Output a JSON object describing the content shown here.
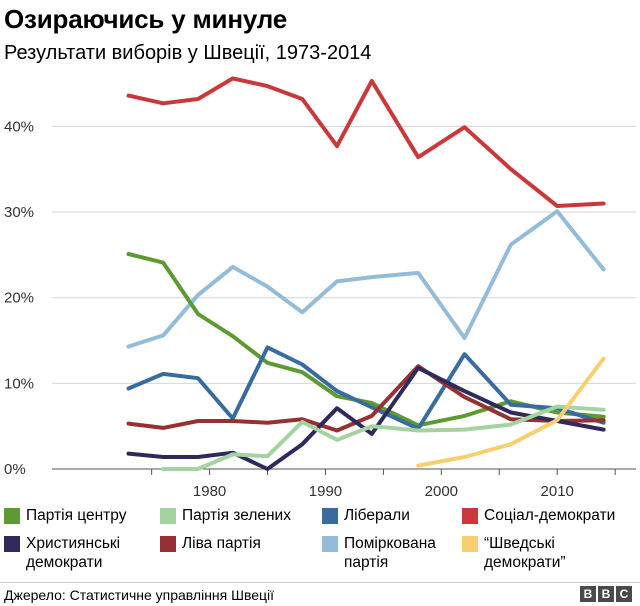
{
  "title": "Озираючись у минуле",
  "subtitle": "Результати виборів у Швеції, 1973-2014",
  "source": "Джерело: Статистичне управління Швеції",
  "brand": {
    "letters": [
      "B",
      "B",
      "C"
    ]
  },
  "chart_data": {
    "type": "line",
    "xlim": [
      1973,
      2014
    ],
    "ylim": [
      0,
      46
    ],
    "x_ticks": [
      1980,
      1990,
      2000,
      2010
    ],
    "x_tick_labels": [
      "1980",
      "1990",
      "2000",
      "2010"
    ],
    "y_ticks": [
      0,
      10,
      20,
      30,
      40
    ],
    "y_tick_labels": [
      "0%",
      "10%",
      "20%",
      "30%",
      "40%"
    ],
    "grid": true,
    "x": [
      1973,
      1976,
      1979,
      1982,
      1985,
      1988,
      1991,
      1994,
      1998,
      2002,
      2006,
      2010,
      2014
    ],
    "series": [
      {
        "name": "Соціал-демократи",
        "color": "#c9393a",
        "values": [
          43.6,
          42.7,
          43.2,
          45.6,
          44.7,
          43.2,
          37.7,
          45.3,
          36.4,
          39.9,
          35.0,
          30.7,
          31.0
        ]
      },
      {
        "name": "Поміркована партія",
        "color": "#93bcd9",
        "values": [
          14.3,
          15.6,
          20.3,
          23.6,
          21.3,
          18.3,
          21.9,
          22.4,
          22.9,
          15.3,
          26.2,
          30.1,
          23.3
        ]
      },
      {
        "name": "Партія центру",
        "color": "#5d9a32",
        "values": [
          25.1,
          24.1,
          18.1,
          15.5,
          12.4,
          11.3,
          8.5,
          7.7,
          5.1,
          6.2,
          7.9,
          6.6,
          6.1
        ]
      },
      {
        "name": "Ліберали",
        "color": "#386c9e",
        "values": [
          9.4,
          11.1,
          10.6,
          5.9,
          14.2,
          12.2,
          9.1,
          7.2,
          4.7,
          13.4,
          7.5,
          7.1,
          5.4
        ]
      },
      {
        "name": "Ліва партія",
        "color": "#953133",
        "values": [
          5.3,
          4.8,
          5.6,
          5.6,
          5.4,
          5.8,
          4.5,
          6.2,
          12.0,
          8.4,
          5.8,
          5.6,
          5.7
        ]
      },
      {
        "name": "Християнські демократи",
        "color": "#2e2a5c",
        "values": [
          1.8,
          1.4,
          1.4,
          1.9,
          0.0,
          2.9,
          7.1,
          4.1,
          11.8,
          9.1,
          6.6,
          5.6,
          4.6
        ]
      },
      {
        "name": "Партія зелених",
        "color": "#a4d3a0",
        "values": [
          null,
          0.0,
          0.0,
          1.7,
          1.5,
          5.5,
          3.4,
          5.0,
          4.5,
          4.6,
          5.2,
          7.3,
          6.9
        ]
      },
      {
        "name": "“Шведські демократи”",
        "color": "#f7cf70",
        "values": [
          null,
          null,
          null,
          null,
          null,
          null,
          null,
          null,
          0.4,
          1.4,
          2.9,
          5.7,
          12.9
        ]
      }
    ]
  },
  "legend": {
    "items": [
      {
        "lines": [
          "Партія центру"
        ],
        "color": "#5d9a32"
      },
      {
        "lines": [
          "Партія зелених"
        ],
        "color": "#a4d3a0"
      },
      {
        "lines": [
          "Ліберали"
        ],
        "color": "#386c9e"
      },
      {
        "lines": [
          "Соціал-демократи"
        ],
        "color": "#c9393a"
      },
      {
        "lines": [
          "Християнські",
          "демократи"
        ],
        "color": "#2e2a5c"
      },
      {
        "lines": [
          "Ліва партія"
        ],
        "color": "#953133"
      },
      {
        "lines": [
          "Поміркована",
          "партія"
        ],
        "color": "#93bcd9"
      },
      {
        "lines": [
          "“Шведські",
          "демократи”"
        ],
        "color": "#f7cf70"
      }
    ]
  }
}
